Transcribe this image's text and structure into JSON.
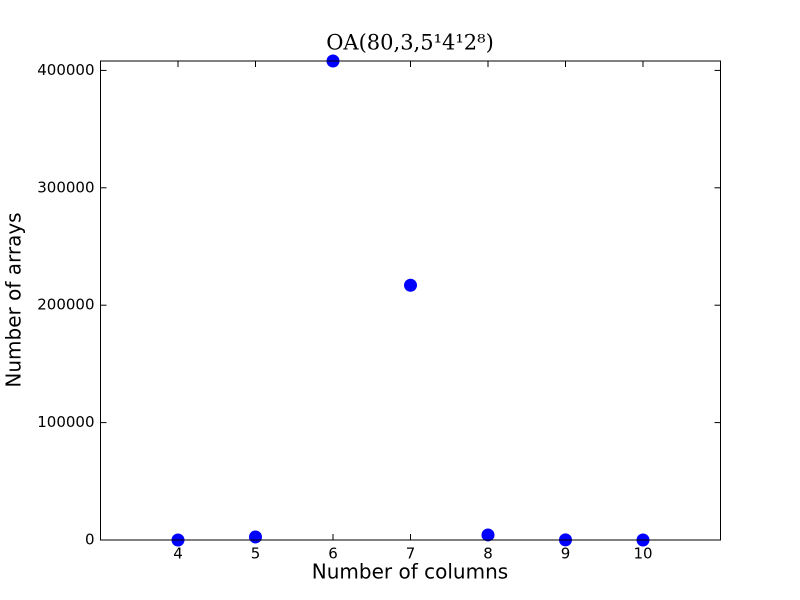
{
  "chart_data": {
    "type": "scatter",
    "title": "OA(80,3,5¹4¹2⁸)",
    "x_label": "Number of columns",
    "y_label": "Number of arrays",
    "x": [
      4,
      5,
      6,
      7,
      8,
      9,
      10
    ],
    "series": [
      {
        "color": "#0000ff",
        "values": [
          20,
          2600,
          408000,
          217000,
          4300,
          100,
          10
        ]
      }
    ],
    "xlim": [
      3,
      11
    ],
    "xticks": [
      4,
      5,
      6,
      7,
      8,
      9,
      10
    ],
    "ylim": [
      0,
      408000
    ],
    "yticks": [
      0,
      100000,
      200000,
      300000,
      400000
    ],
    "grid": false
  }
}
